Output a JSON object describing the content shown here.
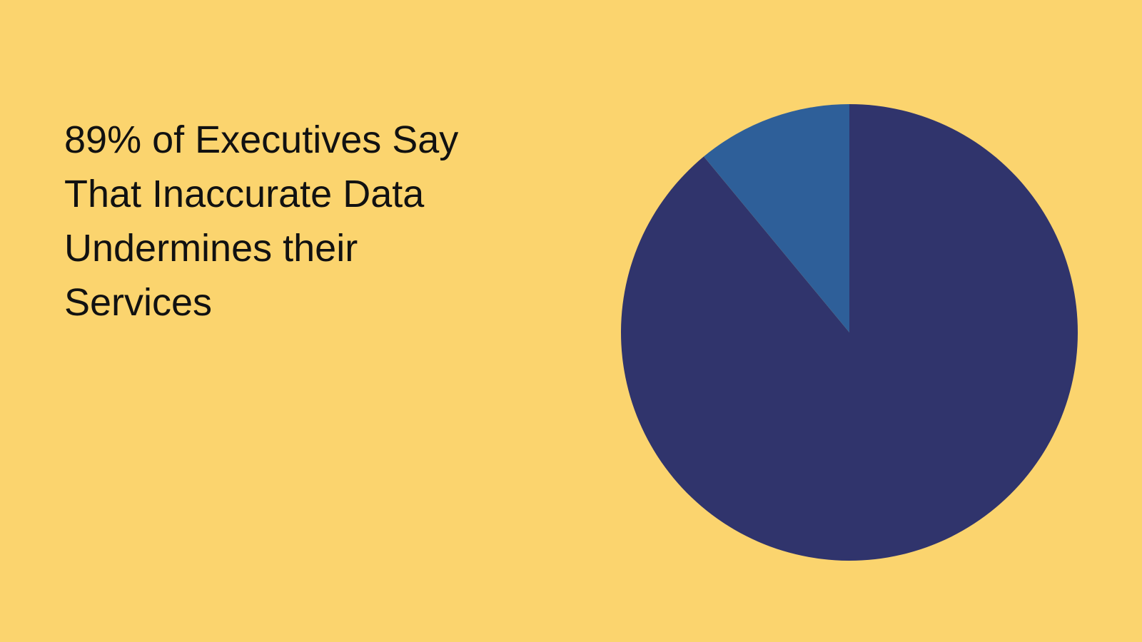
{
  "chart_data": {
    "type": "pie",
    "title": "89% of Executives Say That Inaccurate Data Undermines their Services",
    "values": [
      89,
      11
    ],
    "colors": [
      "#30346c",
      "#2e5f99"
    ],
    "start_angle": "12 o'clock",
    "direction": "clockwise",
    "legend": "none"
  },
  "background_color": "#fbd46e"
}
